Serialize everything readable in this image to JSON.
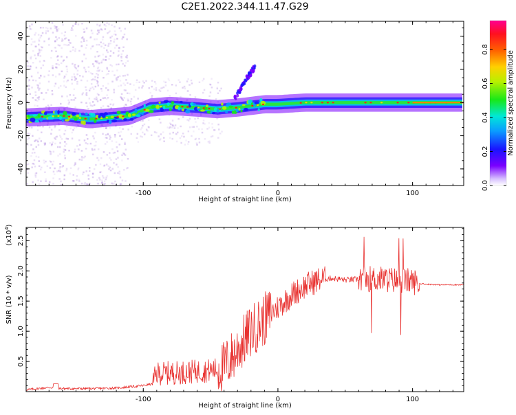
{
  "title": "C2E1.2022.344.11.47.G29",
  "colors": {
    "snr_line": "#e8312f",
    "spectrogram_track_core": "#ff1a1a",
    "spectrogram_scatter": "#a77bdc"
  },
  "chart_data": [
    {
      "type": "heatmap",
      "title": "C2E1.2022.344.11.47.G29",
      "xlabel": "Height of straight line (km)",
      "ylabel": "Frequency (Hz)",
      "xlim": [
        -187,
        138
      ],
      "ylim": [
        -50,
        49
      ],
      "xticks": [
        -100,
        0,
        100
      ],
      "xtick_labels": [
        "-100",
        "0",
        "100"
      ],
      "yticks": [
        -40,
        -20,
        0,
        20,
        40
      ],
      "ytick_labels": [
        "-40",
        "-20",
        "0",
        "20",
        "40"
      ],
      "colorbar": {
        "label": "Normalized spectral amplitude",
        "range": [
          0.0,
          0.97
        ],
        "ticks": [
          0.0,
          0.2,
          0.4,
          0.6,
          0.8
        ],
        "tick_labels": [
          "0.0",
          "0.2",
          "0.4",
          "0.6",
          "0.8"
        ],
        "colormap": "rainbow (purple to red to magenta)"
      },
      "dominant_track": {
        "x": [
          -187,
          -160,
          -140,
          -125,
          -110,
          -95,
          -80,
          -60,
          -45,
          -30,
          -20,
          -10,
          0,
          20,
          50,
          80,
          100,
          138
        ],
        "frequency_hz": [
          -9,
          -8,
          -10,
          -9,
          -8,
          -3,
          -2,
          -3,
          -4,
          -3,
          -2,
          -1,
          -1,
          0,
          0,
          0,
          0,
          0
        ]
      },
      "branch_track": {
        "x": [
          -32,
          -28,
          -24,
          -20,
          -17
        ],
        "frequency_hz": [
          3,
          8,
          14,
          18,
          22
        ]
      }
    },
    {
      "type": "line",
      "xlabel": "Height of straight line (km)",
      "ylabel": "SNR (10 * v/v)",
      "y_scale_label": "(x10",
      "y_scale_exponent": "4",
      "y_scale_suffix": ")",
      "xlim": [
        -187,
        138
      ],
      "ylim": [
        0,
        2.72
      ],
      "xticks": [
        -100,
        0,
        100
      ],
      "xtick_labels": [
        "-100",
        "0",
        "100"
      ],
      "yticks": [
        0.5,
        1.0,
        1.5,
        2.0,
        2.5
      ],
      "ytick_labels": [
        "0.5",
        "1.0",
        "1.5",
        "2.0",
        "2.5"
      ],
      "series": [
        {
          "color": "#e8312f",
          "x": [
            -187,
            -170,
            -160,
            -140,
            -120,
            -100,
            -93,
            -90,
            -70,
            -50,
            -40,
            -30,
            -20,
            -10,
            0,
            10,
            20,
            30,
            40,
            50,
            60,
            70,
            80,
            90,
            100,
            105,
            110,
            120,
            138
          ],
          "y": [
            0.03,
            0.07,
            0.05,
            0.05,
            0.06,
            0.1,
            0.13,
            0.3,
            0.32,
            0.35,
            0.4,
            0.7,
            1.0,
            1.2,
            1.4,
            1.6,
            1.75,
            1.85,
            1.88,
            1.85,
            1.86,
            1.87,
            1.86,
            1.84,
            1.83,
            1.79,
            1.78,
            1.77,
            1.77
          ]
        }
      ]
    }
  ]
}
